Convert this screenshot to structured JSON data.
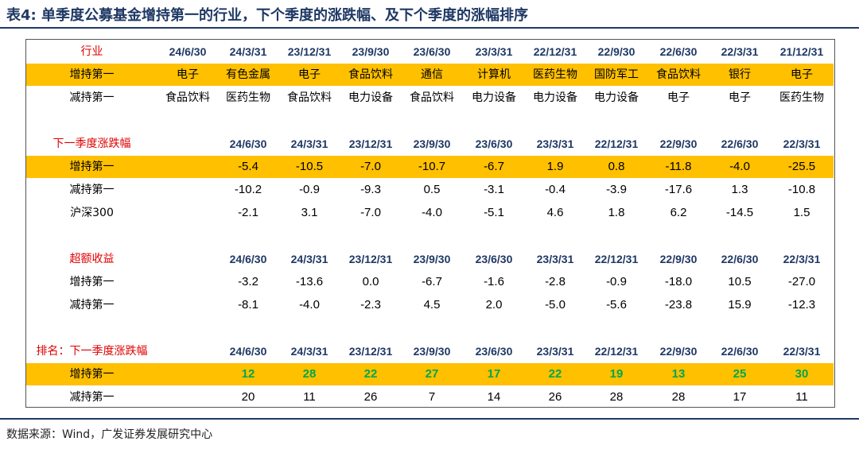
{
  "title": "表4:  单季度公募基金增持第一的行业，下个季度的涨跌幅、及下个季度的涨幅排序",
  "source": "数据来源：Wind，广发证券发展研究中心",
  "colors": {
    "header_text": "#1f3864",
    "label_red": "#e00000",
    "highlight": "#ffc000",
    "rank_green": "#00a650"
  },
  "industry": {
    "label": "行业",
    "dates": [
      "24/6/30",
      "24/3/31",
      "23/12/31",
      "23/9/30",
      "23/6/30",
      "23/3/31",
      "22/12/31",
      "22/9/30",
      "22/6/30",
      "22/3/31",
      "21/12/31"
    ],
    "inc_label": "增持第一",
    "inc": [
      "电子",
      "有色金属",
      "电子",
      "食品饮料",
      "通信",
      "计算机",
      "医药生物",
      "国防军工",
      "食品饮料",
      "银行",
      "电子"
    ],
    "dec_label": "减持第一",
    "dec": [
      "食品饮料",
      "医药生物",
      "食品饮料",
      "电力设备",
      "食品饮料",
      "电力设备",
      "电力设备",
      "电力设备",
      "电子",
      "电子",
      "医药生物"
    ]
  },
  "change": {
    "label": "下一季度涨跌幅",
    "dates": [
      "24/6/30",
      "24/3/31",
      "23/12/31",
      "23/9/30",
      "23/6/30",
      "23/3/31",
      "22/12/31",
      "22/9/30",
      "22/6/30",
      "22/3/31"
    ],
    "inc_label": "增持第一",
    "inc": [
      "-5.4",
      "-10.5",
      "-7.0",
      "-10.7",
      "-6.7",
      "1.9",
      "0.8",
      "-11.8",
      "-4.0",
      "-25.5"
    ],
    "dec_label": "减持第一",
    "dec": [
      "-10.2",
      "-0.9",
      "-9.3",
      "0.5",
      "-3.1",
      "-0.4",
      "-3.9",
      "-17.6",
      "1.3",
      "-10.8"
    ],
    "hs_label": "沪深300",
    "hs": [
      "-2.1",
      "3.1",
      "-7.0",
      "-4.0",
      "-5.1",
      "4.6",
      "1.8",
      "6.2",
      "-14.5",
      "1.5"
    ]
  },
  "excess": {
    "label": "超额收益",
    "dates": [
      "24/6/30",
      "24/3/31",
      "23/12/31",
      "23/9/30",
      "23/6/30",
      "23/3/31",
      "22/12/31",
      "22/9/30",
      "22/6/30",
      "22/3/31"
    ],
    "inc_label": "增持第一",
    "inc": [
      "-3.2",
      "-13.6",
      "0.0",
      "-6.7",
      "-1.6",
      "-2.8",
      "-0.9",
      "-18.0",
      "10.5",
      "-27.0"
    ],
    "dec_label": "减持第一",
    "dec": [
      "-8.1",
      "-4.0",
      "-2.3",
      "4.5",
      "2.0",
      "-5.0",
      "-5.6",
      "-23.8",
      "15.9",
      "-12.3"
    ]
  },
  "rank": {
    "label": "排名：下一季度涨跌幅",
    "dates": [
      "24/6/30",
      "24/3/31",
      "23/12/31",
      "23/9/30",
      "23/6/30",
      "23/3/31",
      "22/12/31",
      "22/9/30",
      "22/6/30",
      "22/3/31"
    ],
    "inc_label": "增持第一",
    "inc": [
      "12",
      "28",
      "22",
      "27",
      "17",
      "22",
      "19",
      "13",
      "25",
      "30"
    ],
    "dec_label": "减持第一",
    "dec": [
      "20",
      "11",
      "26",
      "7",
      "14",
      "26",
      "28",
      "28",
      "17",
      "11"
    ]
  }
}
